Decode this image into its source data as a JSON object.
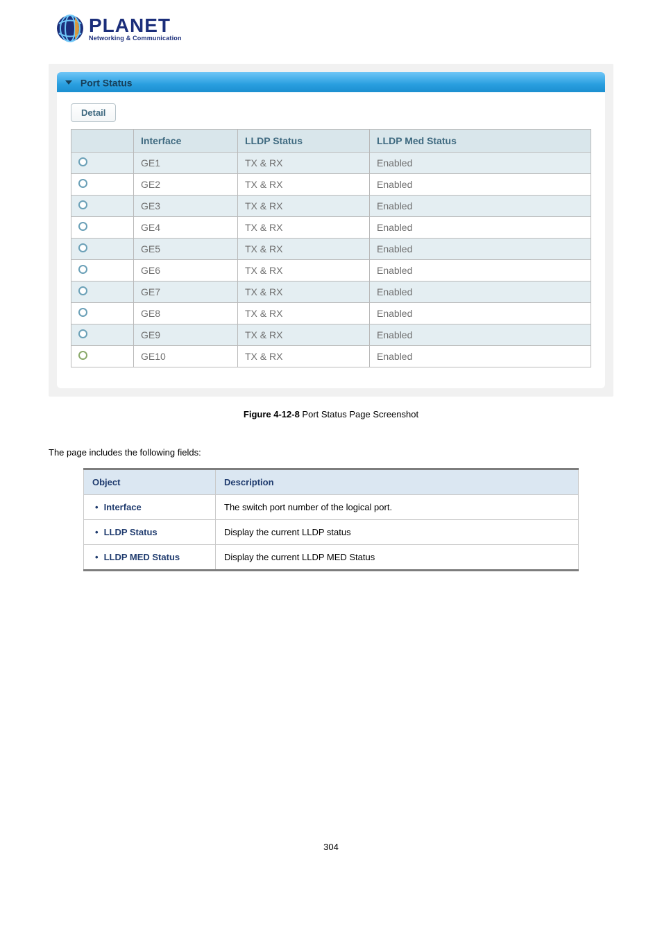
{
  "logo": {
    "brand": "PLANET",
    "tagline": "Networking & Communication"
  },
  "screenshot": {
    "section_title": "Port Status",
    "detail_button_label": "Detail",
    "columns": {
      "c0": "",
      "c1": "Interface",
      "c2": "LLDP Status",
      "c3": "LLDP Med Status"
    },
    "rows": [
      {
        "if": "GE1",
        "lldp": "TX & RX",
        "med": "Enabled"
      },
      {
        "if": "GE2",
        "lldp": "TX & RX",
        "med": "Enabled"
      },
      {
        "if": "GE3",
        "lldp": "TX & RX",
        "med": "Enabled"
      },
      {
        "if": "GE4",
        "lldp": "TX & RX",
        "med": "Enabled"
      },
      {
        "if": "GE5",
        "lldp": "TX & RX",
        "med": "Enabled"
      },
      {
        "if": "GE6",
        "lldp": "TX & RX",
        "med": "Enabled"
      },
      {
        "if": "GE7",
        "lldp": "TX & RX",
        "med": "Enabled"
      },
      {
        "if": "GE8",
        "lldp": "TX & RX",
        "med": "Enabled"
      },
      {
        "if": "GE9",
        "lldp": "TX & RX",
        "med": "Enabled"
      },
      {
        "if": "GE10",
        "lldp": "TX & RX",
        "med": "Enabled"
      }
    ],
    "row_colors": {
      "odd": "#e4eef2",
      "even": "#ffffff"
    },
    "header_gradient": [
      "#6fc6f7",
      "#2a9fe0",
      "#1b8fd0"
    ]
  },
  "figure_caption": {
    "label": "Figure 4-12-8",
    "text": " Port Status Page Screenshot"
  },
  "intro_text": "The page includes the following fields:",
  "fields_table": {
    "headers": {
      "object": "Object",
      "description": "Description"
    },
    "rows": [
      {
        "object": "Interface",
        "description": "The switch port number of the logical port."
      },
      {
        "object": "LLDP Status",
        "description": "Display the current LLDP status"
      },
      {
        "object": "LLDP MED Status",
        "description": "Display the current LLDP MED Status"
      }
    ]
  },
  "page_number": "304"
}
